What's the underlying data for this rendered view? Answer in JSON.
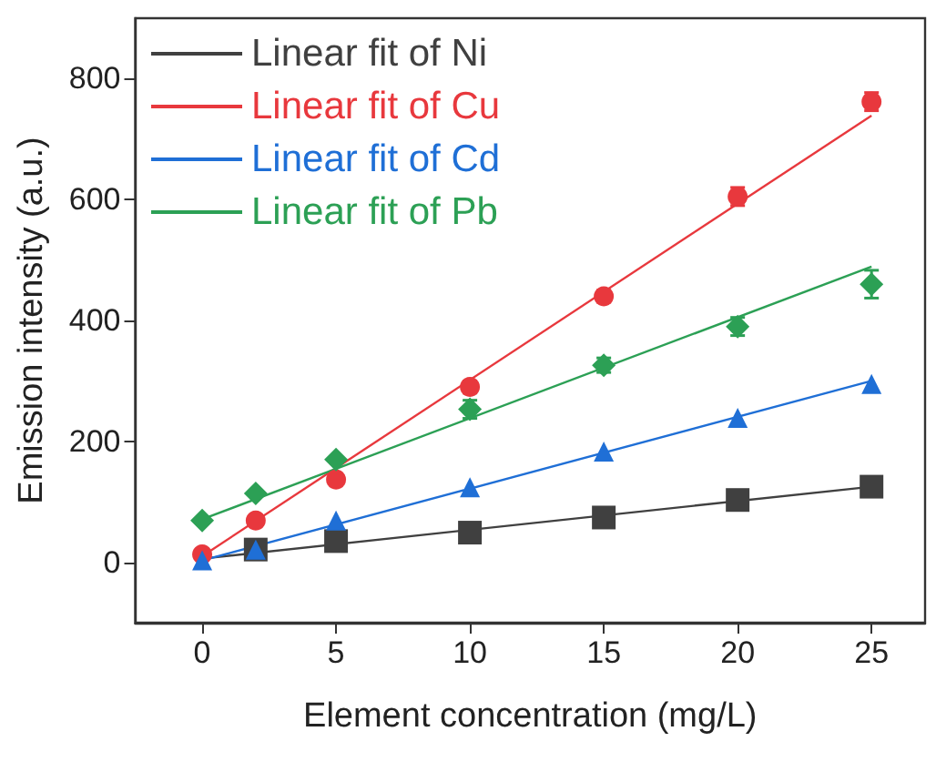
{
  "chart_data": {
    "type": "scatter",
    "xlabel": "Element concentration (mg/L)",
    "ylabel": "Emission intensity (a.u.)",
    "xlim": [
      -2.5,
      27
    ],
    "xticks": [
      0,
      5,
      10,
      15,
      20,
      25
    ],
    "ylim": [
      -100,
      900
    ],
    "yticks": [
      0,
      200,
      400,
      600,
      800
    ],
    "grid": false,
    "legend": "top left",
    "series": [
      {
        "marker": "square",
        "color": "#404040",
        "x": [
          2,
          5,
          10,
          15,
          20,
          25
        ],
        "values": [
          21,
          35,
          49,
          74,
          103,
          125
        ]
      },
      {
        "marker": "circle",
        "color": "#e8383d",
        "x": [
          0,
          2,
          5,
          10,
          15,
          20,
          25
        ],
        "values": [
          13,
          69,
          137,
          290,
          440,
          605,
          762
        ],
        "errors": [
          null,
          null,
          null,
          10,
          10,
          15,
          15
        ]
      },
      {
        "marker": "triangle",
        "color": "#1f6fd6",
        "x": [
          0,
          2,
          5,
          10,
          15,
          20,
          25
        ],
        "values": [
          3,
          21,
          69,
          124,
          183,
          239,
          295
        ]
      },
      {
        "marker": "diamond",
        "color": "#2ca055",
        "x": [
          0,
          2,
          5,
          10,
          15,
          20,
          25
        ],
        "values": [
          69,
          114,
          170,
          253,
          326,
          390,
          460
        ],
        "errors": [
          null,
          null,
          null,
          15,
          12,
          15,
          23
        ]
      },
      {
        "type": "line",
        "marker": "none",
        "name": "Linear fit of Ni",
        "color": "#404040",
        "x": [
          0,
          25
        ],
        "values": [
          6,
          125
        ]
      },
      {
        "type": "line",
        "marker": "none",
        "name": "Linear fit of Cu",
        "color": "#e8383d",
        "x": [
          0,
          25
        ],
        "values": [
          10,
          739
        ]
      },
      {
        "type": "line",
        "marker": "none",
        "name": "Linear fit of Cd",
        "color": "#1f6fd6",
        "x": [
          0,
          25
        ],
        "values": [
          3,
          300
        ]
      },
      {
        "type": "line",
        "marker": "none",
        "name": "Linear fit of Pb",
        "color": "#2ca055",
        "x": [
          0,
          25
        ],
        "values": [
          71,
          489
        ]
      }
    ]
  }
}
